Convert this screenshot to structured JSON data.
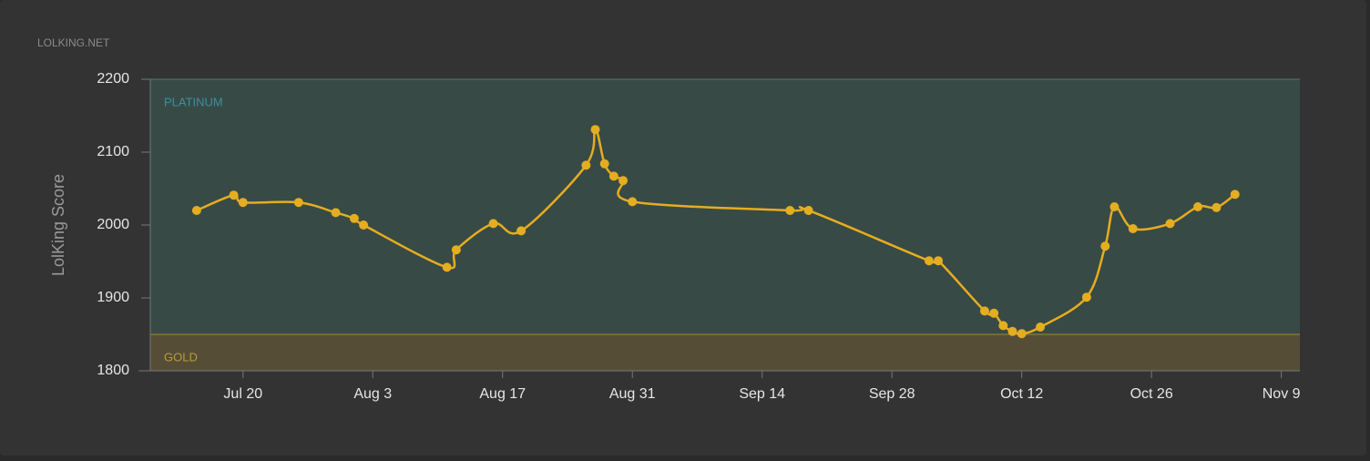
{
  "chart_data": {
    "type": "line",
    "watermark": "LOLKING.NET",
    "ylabel": "LolKing Score",
    "bands": [
      {
        "name": "PLATINUM",
        "from": 1850,
        "to": 2200,
        "color": "#384a45",
        "label_color": "#3e8ea0"
      },
      {
        "name": "GOLD",
        "from": 1800,
        "to": 1850,
        "color": "#564d37",
        "label_color": "#b89a3a"
      }
    ],
    "x": [
      "Jul 15",
      "Jul 19",
      "Jul 20",
      "Jul 26",
      "Jul 30",
      "Aug 1",
      "Aug 2",
      "Aug 11",
      "Aug 12",
      "Aug 16",
      "Aug 19",
      "Aug 26",
      "Aug 27",
      "Aug 28",
      "Aug 29",
      "Aug 30",
      "Aug 31",
      "Sep 17",
      "Sep 19",
      "Oct 2",
      "Oct 3",
      "Oct 8",
      "Oct 9",
      "Oct 10",
      "Oct 11",
      "Oct 12",
      "Oct 14",
      "Oct 19",
      "Oct 21",
      "Oct 22",
      "Oct 24",
      "Oct 28",
      "Oct 31",
      "Nov 2",
      "Nov 4"
    ],
    "series": [
      {
        "name": "LolKing Score",
        "color": "#e5ad20",
        "values": [
          2020,
          2041,
          2031,
          2031,
          2017,
          2009,
          2000,
          1942,
          1966,
          2002,
          1992,
          2082,
          2131,
          2084,
          2067,
          2061,
          2032,
          2020,
          2020,
          1951,
          1951,
          1882,
          1879,
          1862,
          1854,
          1851,
          1860,
          1901,
          1971,
          2025,
          1995,
          2002,
          2025,
          2024,
          2042
        ]
      }
    ],
    "xlim": [
      "Jul 10",
      "Nov 11"
    ],
    "xticks": [
      "Jul 20",
      "Aug 3",
      "Aug 17",
      "Aug 31",
      "Sep 14",
      "Sep 28",
      "Oct 12",
      "Oct 26",
      "Nov 9"
    ],
    "ylim": [
      1800,
      2200
    ],
    "yticks": [
      1800,
      1900,
      2000,
      2100,
      2200
    ]
  }
}
